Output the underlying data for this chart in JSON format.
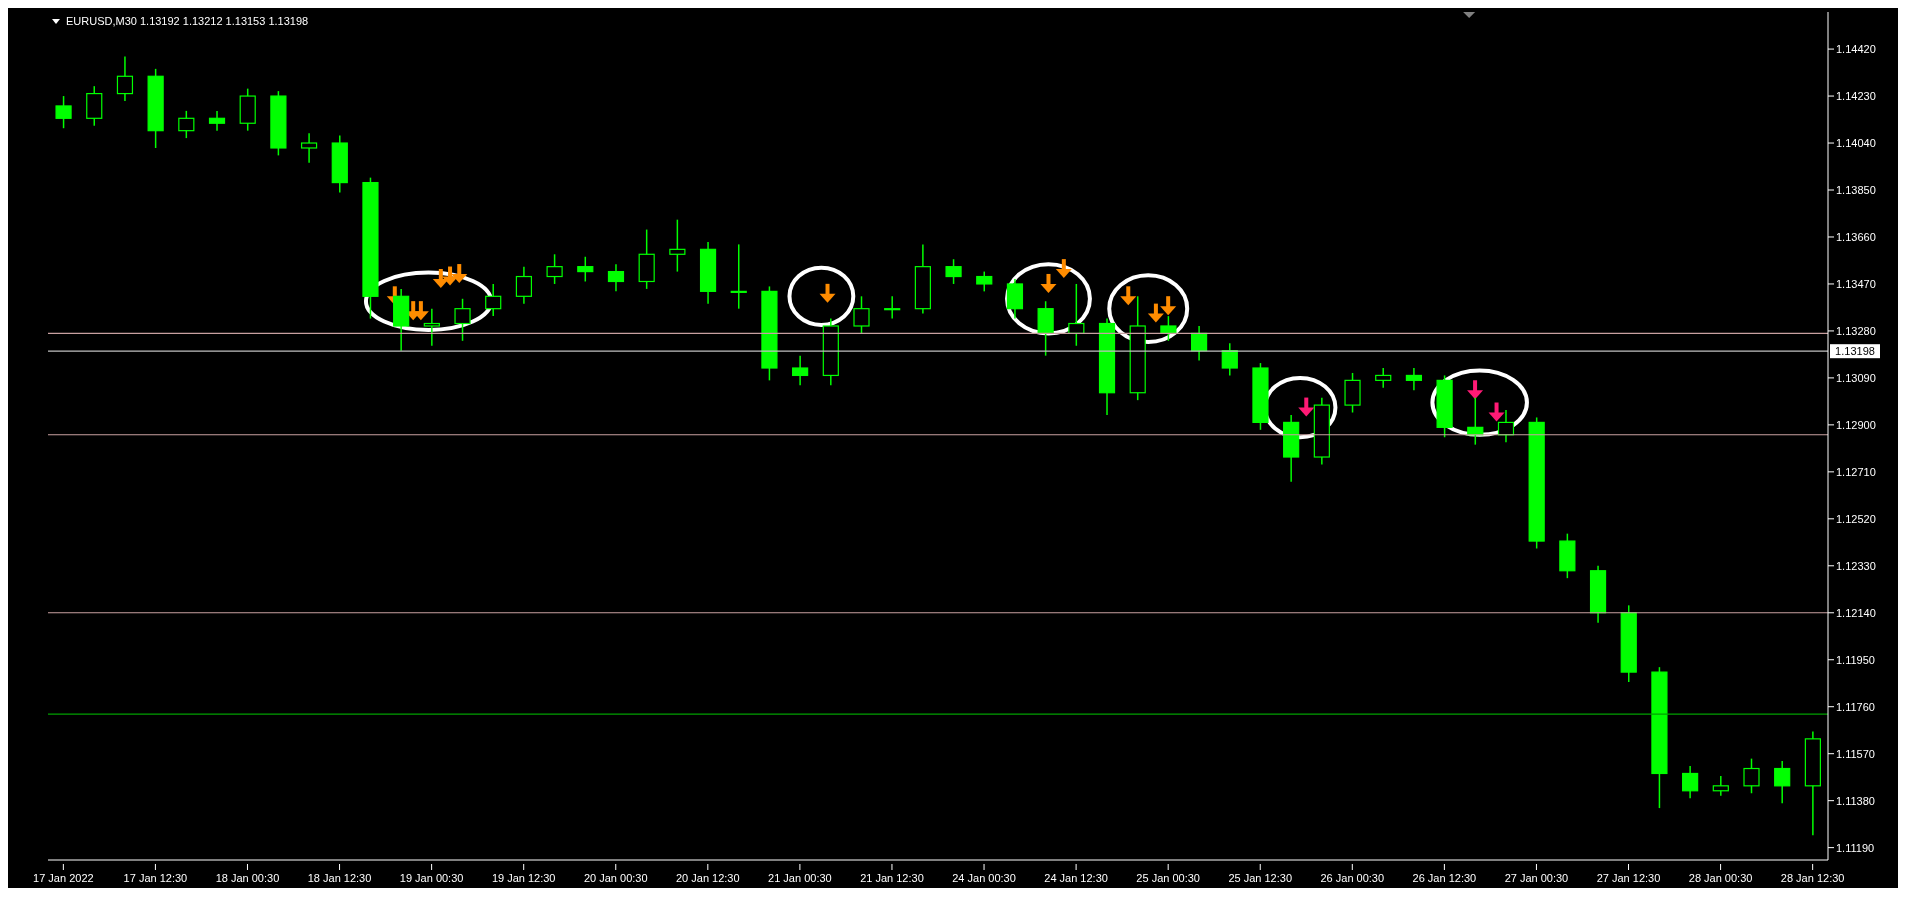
{
  "chart_data": {
    "type": "candlestick",
    "title": "EURUSD,M30  1.13192 1.13212 1.13153 1.13198",
    "categories": [
      "17 Jan 2022",
      null,
      null,
      "17 Jan 12:30",
      null,
      null,
      "18 Jan 00:30",
      null,
      null,
      "18 Jan 12:30",
      null,
      null,
      "19 Jan 00:30",
      null,
      null,
      "19 Jan 12:30",
      null,
      null,
      "20 Jan 00:30",
      null,
      null,
      "20 Jan 12:30",
      null,
      null,
      "21 Jan 00:30",
      null,
      null,
      "21 Jan 12:30",
      null,
      null,
      "24 Jan 00:30",
      null,
      null,
      "24 Jan 12:30",
      null,
      null,
      "25 Jan 00:30",
      null,
      null,
      "25 Jan 12:30",
      null,
      null,
      "26 Jan 00:30",
      null,
      null,
      "26 Jan 12:30",
      null,
      null,
      "27 Jan 00:30",
      null,
      null,
      "27 Jan 12:30",
      null,
      null,
      "28 Jan 00:30",
      null,
      null,
      "28 Jan 12:30"
    ],
    "ohlc": [
      [
        1.1419,
        1.1423,
        1.141,
        1.1414
      ],
      [
        1.1414,
        1.1427,
        1.1411,
        1.1424
      ],
      [
        1.1424,
        1.1439,
        1.1421,
        1.1431
      ],
      [
        1.1431,
        1.1434,
        1.1402,
        1.1409
      ],
      [
        1.1409,
        1.1417,
        1.1406,
        1.1414
      ],
      [
        1.1414,
        1.1417,
        1.1409,
        1.1412
      ],
      [
        1.1412,
        1.1426,
        1.1409,
        1.1423
      ],
      [
        1.1423,
        1.1425,
        1.1399,
        1.1402
      ],
      [
        1.1402,
        1.1408,
        1.1396,
        1.1404
      ],
      [
        1.1404,
        1.1407,
        1.1384,
        1.1388
      ],
      [
        1.1388,
        1.139,
        1.1333,
        1.1342
      ],
      [
        1.1342,
        1.1345,
        1.132,
        1.133
      ],
      [
        1.133,
        1.1337,
        1.1322,
        1.1331
      ],
      [
        1.1331,
        1.1341,
        1.1324,
        1.1337
      ],
      [
        1.1337,
        1.1347,
        1.1334,
        1.1342
      ],
      [
        1.1342,
        1.1354,
        1.1339,
        1.135
      ],
      [
        1.135,
        1.1359,
        1.1347,
        1.1354
      ],
      [
        1.1354,
        1.1358,
        1.1348,
        1.1352
      ],
      [
        1.1352,
        1.1355,
        1.1344,
        1.1348
      ],
      [
        1.1348,
        1.1369,
        1.1345,
        1.1359
      ],
      [
        1.1359,
        1.1373,
        1.1352,
        1.1361
      ],
      [
        1.1361,
        1.1364,
        1.1339,
        1.1344
      ],
      [
        1.1344,
        1.1363,
        1.1337,
        1.1344
      ],
      [
        1.1344,
        1.1346,
        1.1308,
        1.1313
      ],
      [
        1.1313,
        1.1318,
        1.1306,
        1.131
      ],
      [
        1.131,
        1.1333,
        1.1306,
        1.133
      ],
      [
        1.133,
        1.1342,
        1.1327,
        1.1337
      ],
      [
        1.1337,
        1.1342,
        1.1333,
        1.1337
      ],
      [
        1.1337,
        1.1363,
        1.1335,
        1.1354
      ],
      [
        1.1354,
        1.1357,
        1.1347,
        1.135
      ],
      [
        1.135,
        1.1352,
        1.1344,
        1.1347
      ],
      [
        1.1347,
        1.1349,
        1.1333,
        1.1337
      ],
      [
        1.1337,
        1.134,
        1.1318,
        1.1327
      ],
      [
        1.1327,
        1.1347,
        1.1322,
        1.1331
      ],
      [
        1.1331,
        1.1333,
        1.1294,
        1.1303
      ],
      [
        1.1303,
        1.1342,
        1.13,
        1.133
      ],
      [
        1.133,
        1.1334,
        1.1324,
        1.1327
      ],
      [
        1.1327,
        1.133,
        1.1316,
        1.132
      ],
      [
        1.132,
        1.1323,
        1.131,
        1.1313
      ],
      [
        1.1313,
        1.1315,
        1.1288,
        1.1291
      ],
      [
        1.1291,
        1.1294,
        1.1267,
        1.1277
      ],
      [
        1.1277,
        1.1301,
        1.1274,
        1.1298
      ],
      [
        1.1298,
        1.1311,
        1.1295,
        1.1308
      ],
      [
        1.1308,
        1.1313,
        1.1305,
        1.131
      ],
      [
        1.131,
        1.1313,
        1.1304,
        1.1308
      ],
      [
        1.1308,
        1.131,
        1.1285,
        1.1289
      ],
      [
        1.1289,
        1.1301,
        1.1282,
        1.1286
      ],
      [
        1.1286,
        1.1296,
        1.1283,
        1.1291
      ],
      [
        1.1291,
        1.1293,
        1.124,
        1.1243
      ],
      [
        1.1243,
        1.1246,
        1.1228,
        1.1231
      ],
      [
        1.1231,
        1.1233,
        1.121,
        1.1214
      ],
      [
        1.1214,
        1.1217,
        1.1186,
        1.119
      ],
      [
        1.119,
        1.1192,
        1.1135,
        1.1149
      ],
      [
        1.1149,
        1.1152,
        1.1139,
        1.1142
      ],
      [
        1.1142,
        1.1148,
        1.114,
        1.1144
      ],
      [
        1.1144,
        1.1155,
        1.1141,
        1.1151
      ],
      [
        1.1151,
        1.1154,
        1.1137,
        1.1144
      ],
      [
        1.1144,
        1.1166,
        1.1124,
        1.1163
      ]
    ],
    "color": "#00ff00",
    "ylim": [
      1.1114,
      1.1457
    ],
    "yticks": [
      {
        "value": 1.1119,
        "label": "1.11190"
      },
      {
        "value": 1.1138,
        "label": "1.11380"
      },
      {
        "value": 1.1157,
        "label": "1.11570"
      },
      {
        "value": 1.1176,
        "label": "1.11760"
      },
      {
        "value": 1.1195,
        "label": "1.11950"
      },
      {
        "value": 1.1214,
        "label": "1.12140"
      },
      {
        "value": 1.1233,
        "label": "1.12330"
      },
      {
        "value": 1.1252,
        "label": "1.12520"
      },
      {
        "value": 1.1271,
        "label": "1.12710"
      },
      {
        "value": 1.129,
        "label": "1.12900"
      },
      {
        "value": 1.1309,
        "label": "1.13090"
      },
      {
        "value": 1.1328,
        "label": "1.13280"
      },
      {
        "value": 1.1347,
        "label": "1.13470"
      },
      {
        "value": 1.1366,
        "label": "1.13660"
      },
      {
        "value": 1.1385,
        "label": "1.13850"
      },
      {
        "value": 1.1404,
        "label": "1.14040"
      },
      {
        "value": 1.1423,
        "label": "1.14230"
      },
      {
        "value": 1.1442,
        "label": "1.14420"
      }
    ],
    "ref_lines": [
      {
        "axis": "y",
        "value": 1.1327,
        "color": "#c8a0a0"
      },
      {
        "axis": "y",
        "value": 1.13198,
        "label": "1.13198",
        "color": "#c0c0c0"
      },
      {
        "axis": "y",
        "value": 1.1286,
        "color": "#c8a0a0"
      },
      {
        "axis": "y",
        "value": 1.1214,
        "color": "#c8a0a0"
      },
      {
        "axis": "y",
        "value": 1.1173,
        "color": "#00a000"
      }
    ]
  }
}
